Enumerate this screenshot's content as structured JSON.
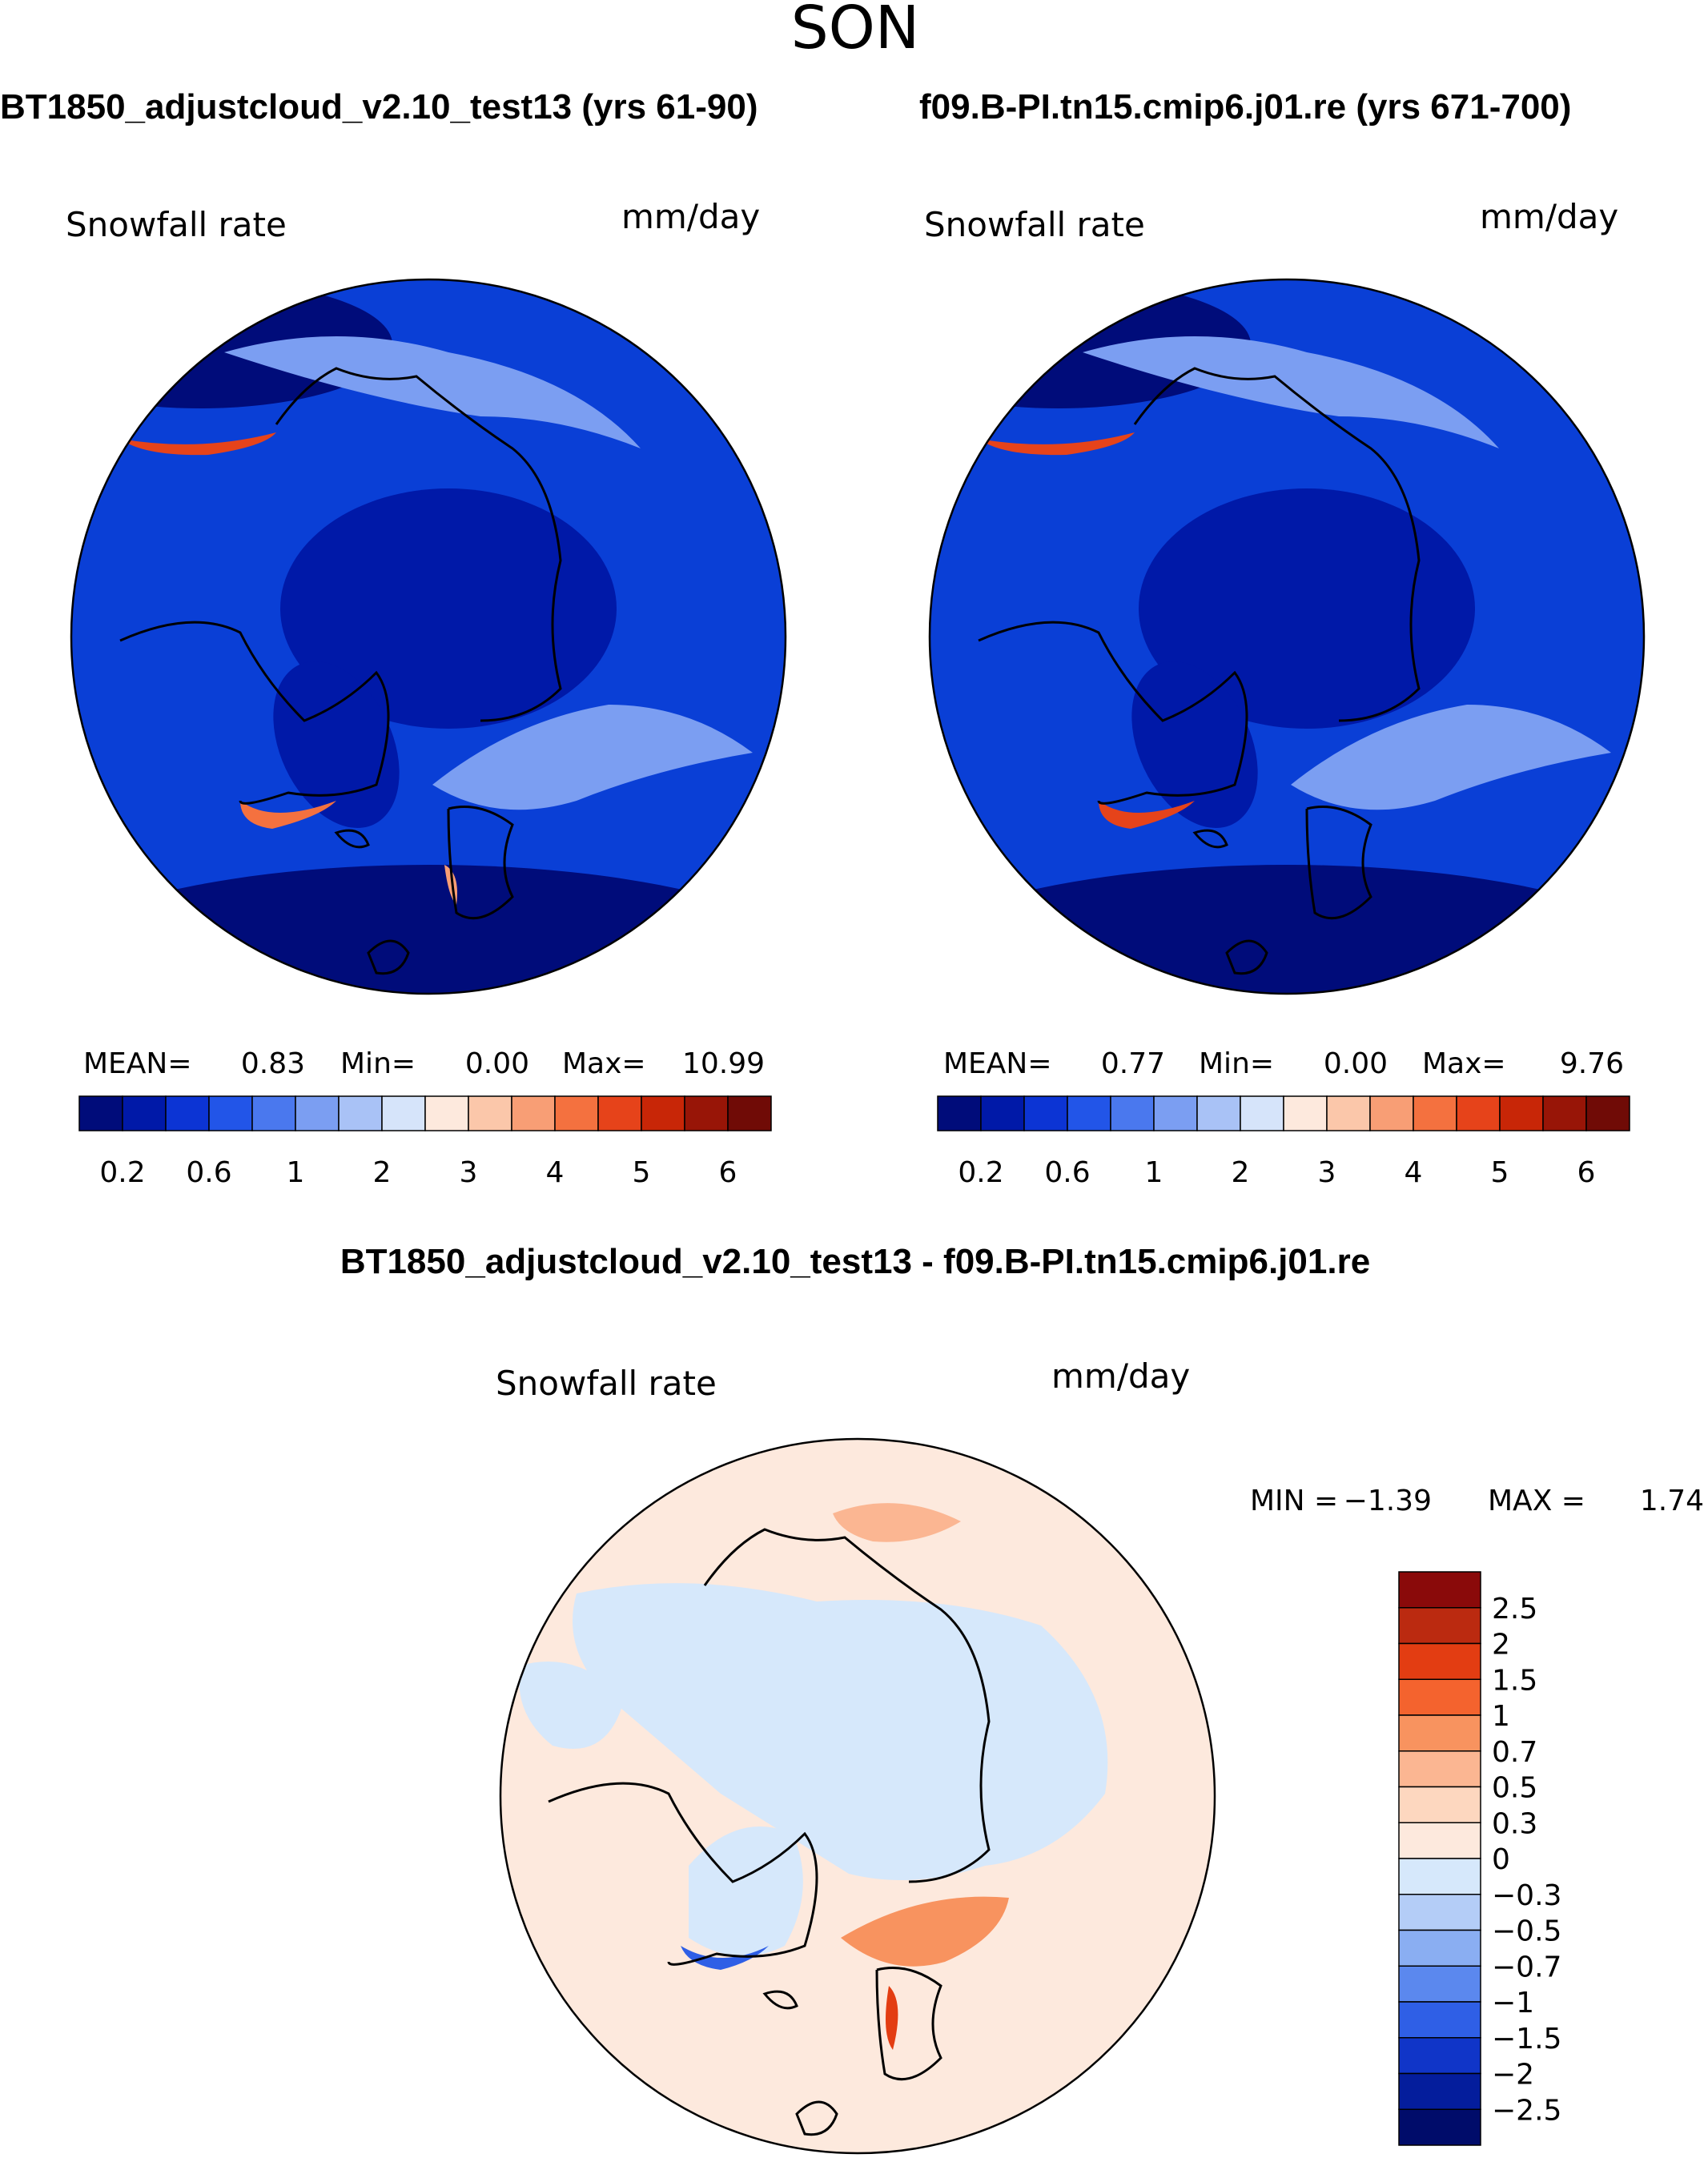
{
  "chart_data": {
    "type": "heatmap",
    "season": "SON",
    "panels": [
      {
        "id": "case",
        "title": "BT1850_adjustcloud_v2.10_test13 (yrs 61-90)",
        "variable": "Snowfall rate",
        "units": "mm/day",
        "stats": {
          "mean_label": "MEAN=",
          "mean": "0.83",
          "min_label": "Min=",
          "min": "0.00",
          "max_label": "Max=",
          "max": "10.99"
        },
        "colorbar": {
          "tick_labels": [
            "0.2",
            "0.6",
            "1",
            "2",
            "3",
            "4",
            "5",
            "6"
          ],
          "colors": [
            "#000c7a",
            "#0019a8",
            "#0c34d4",
            "#2255e8",
            "#4a78ee",
            "#7b9ef2",
            "#a9c2f6",
            "#d6e4fa",
            "#fde9dd",
            "#fbc7aa",
            "#f89e75",
            "#f4713f",
            "#e6431a",
            "#c82607",
            "#981507",
            "#700b06"
          ]
        }
      },
      {
        "id": "control",
        "title": "f09.B-PI.tn15.cmip6.j01.re (yrs 671-700)",
        "variable": "Snowfall rate",
        "units": "mm/day",
        "stats": {
          "mean_label": "MEAN=",
          "mean": "0.77",
          "min_label": "Min=",
          "min": "0.00",
          "max_label": "Max=",
          "max": "9.76"
        },
        "colorbar": {
          "tick_labels": [
            "0.2",
            "0.6",
            "1",
            "2",
            "3",
            "4",
            "5",
            "6"
          ],
          "colors": [
            "#000c7a",
            "#0019a8",
            "#0c34d4",
            "#2255e8",
            "#4a78ee",
            "#7b9ef2",
            "#a9c2f6",
            "#d6e4fa",
            "#fde9dd",
            "#fbc7aa",
            "#f89e75",
            "#f4713f",
            "#e6431a",
            "#c82607",
            "#981507",
            "#700b06"
          ]
        }
      },
      {
        "id": "difference",
        "title": "BT1850_adjustcloud_v2.10_test13 - f09.B-PI.tn15.cmip6.j01.re",
        "variable": "Snowfall rate",
        "units": "mm/day",
        "stats": {
          "min_label": "MIN =",
          "min": "−1.39",
          "max_label": "MAX =",
          "max": "1.74"
        },
        "colorbar": {
          "tick_labels": [
            "2.5",
            "2",
            "1.5",
            "1",
            "0.7",
            "0.5",
            "0.3",
            "0",
            "−0.3",
            "−0.5",
            "−0.7",
            "−1",
            "−1.5",
            "−2",
            "−2.5"
          ],
          "colors": [
            "#8a0a0a",
            "#bb2a10",
            "#e33d12",
            "#f4632e",
            "#f8935f",
            "#fbb692",
            "#fdd7bf",
            "#fde9dd",
            "#d6e8fb",
            "#b4cdf7",
            "#8aaef2",
            "#5b88ee",
            "#2f5fe6",
            "#1035c8",
            "#041d9c",
            "#000c6a"
          ]
        }
      }
    ]
  },
  "map_colors": {
    "case": "#0a3fd6",
    "control": "#0a3fd6",
    "difference": "#fde9dd",
    "coast": "#000000"
  }
}
